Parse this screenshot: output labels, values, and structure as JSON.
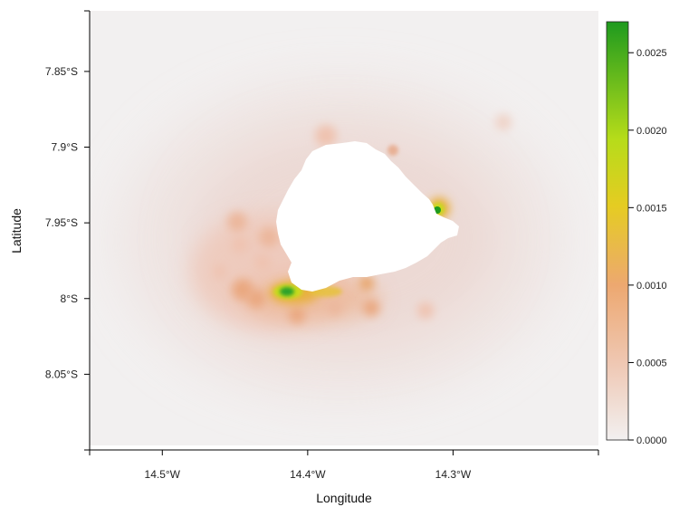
{
  "map": {
    "xlabel": "Longitude",
    "ylabel": "Latitude",
    "x_ticks": [
      {
        "value": -14.5,
        "label": "14.5°W"
      },
      {
        "value": -14.4,
        "label": "14.4°W"
      },
      {
        "value": -14.3,
        "label": "14.3°W"
      }
    ],
    "y_ticks": [
      {
        "value": -7.85,
        "label": "7.85°S"
      },
      {
        "value": -7.9,
        "label": "7.9°S"
      },
      {
        "value": -7.95,
        "label": "7.95°S"
      },
      {
        "value": -8.0,
        "label": "8°S"
      },
      {
        "value": -8.05,
        "label": "8.05°S"
      }
    ],
    "xlim": [
      -14.55,
      -14.2
    ],
    "ylim": [
      -8.1,
      -7.81
    ],
    "background_color": "#f2f0f0",
    "land_color": "#ffffff",
    "legend": {
      "range": [
        0,
        0.0027
      ],
      "ticks": [
        {
          "value": 0.0,
          "label": "0.0000"
        },
        {
          "value": 0.0005,
          "label": "0.0005"
        },
        {
          "value": 0.001,
          "label": "0.0010"
        },
        {
          "value": 0.0015,
          "label": "0.0015"
        },
        {
          "value": 0.002,
          "label": "0.0020"
        },
        {
          "value": 0.0025,
          "label": "0.0025"
        }
      ],
      "colors": [
        "#f2f0f0",
        "#efc8b4",
        "#eda870",
        "#e5cc22",
        "#b6dc1a",
        "#1e9a1e"
      ]
    }
  }
}
